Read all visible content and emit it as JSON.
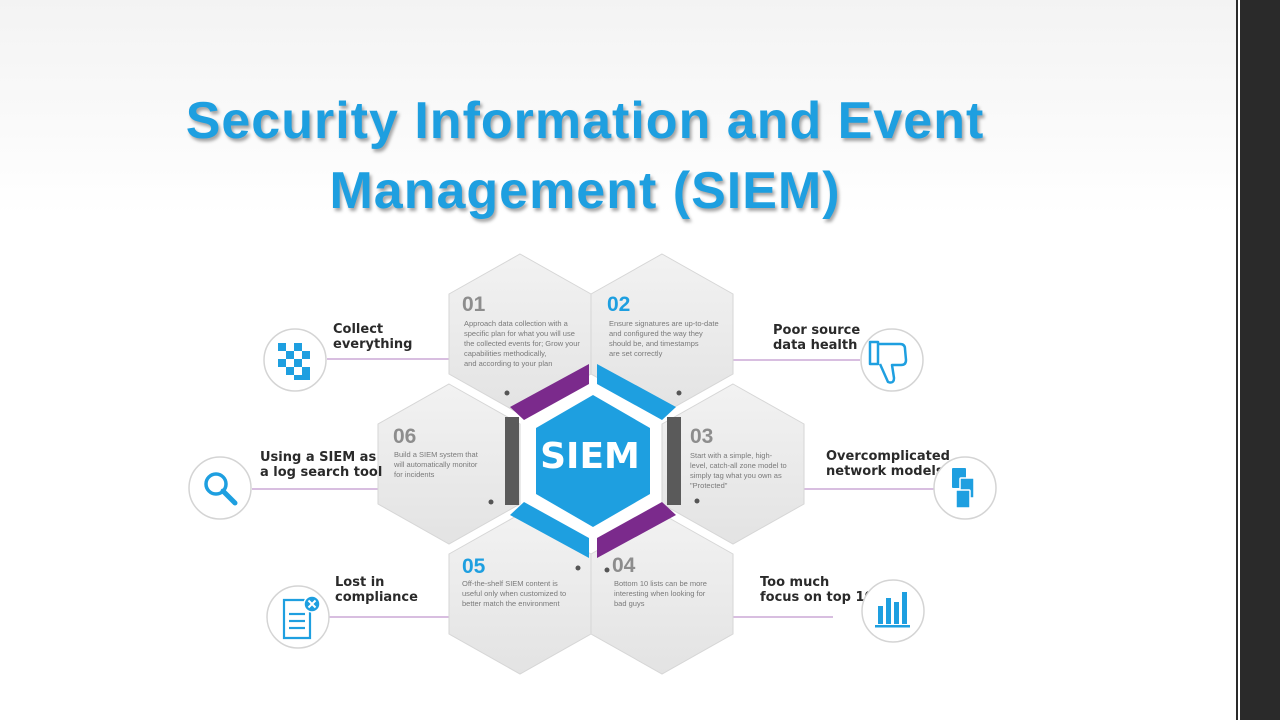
{
  "title": {
    "line1": "Security Information and Event",
    "line2": "Management (SIEM)"
  },
  "center": {
    "label": "SIEM"
  },
  "hexes": [
    {
      "num": "01",
      "lines": [
        "Approach data collection with a",
        "specific plan for what you will use",
        "the collected events for; Grow your",
        "capabilities  methodically,",
        "and according to your plan"
      ]
    },
    {
      "num": "02",
      "lines": [
        "Ensure signatures are up-to-date",
        "and configured the way they",
        "should be, and timestamps",
        "are set correctly"
      ]
    },
    {
      "num": "03",
      "lines": [
        "Start with a simple, high-",
        "level, catch-all zone model to",
        "simply tag what you own as",
        "\"Protected\""
      ]
    },
    {
      "num": "04",
      "lines": [
        "Bottom 10 lists can be more",
        "interesting when looking for",
        "bad guys"
      ]
    },
    {
      "num": "05",
      "lines": [
        "Off-the-shelf SIEM content is",
        "useful only when customized to",
        "better match the environment"
      ]
    },
    {
      "num": "06",
      "lines": [
        "Build a SIEM system that",
        "will automatically monitor",
        "for incidents"
      ]
    }
  ],
  "callouts": [
    {
      "lines": [
        "Collect",
        "everything"
      ],
      "icon": "checker-icon"
    },
    {
      "lines": [
        "Poor source",
        "data health"
      ],
      "icon": "thumbs-down-icon"
    },
    {
      "lines": [
        "Overcomplicated",
        "network models"
      ],
      "icon": "documents-icon"
    },
    {
      "lines": [
        "Too much",
        "focus on top 10"
      ],
      "icon": "bar-chart-icon"
    },
    {
      "lines": [
        "Lost in",
        "compliance"
      ],
      "icon": "document-x-icon"
    },
    {
      "lines": [
        "Using a SIEM as",
        "a log search tool"
      ],
      "icon": "search-icon"
    }
  ],
  "colors": {
    "title": "#1e9fe0",
    "siem": "#1e9fe0",
    "purple": "#7b2a8c",
    "blue": "#1e9fe0",
    "gray": "#5a5a5a",
    "hex_fill": "#e9e9e9"
  }
}
